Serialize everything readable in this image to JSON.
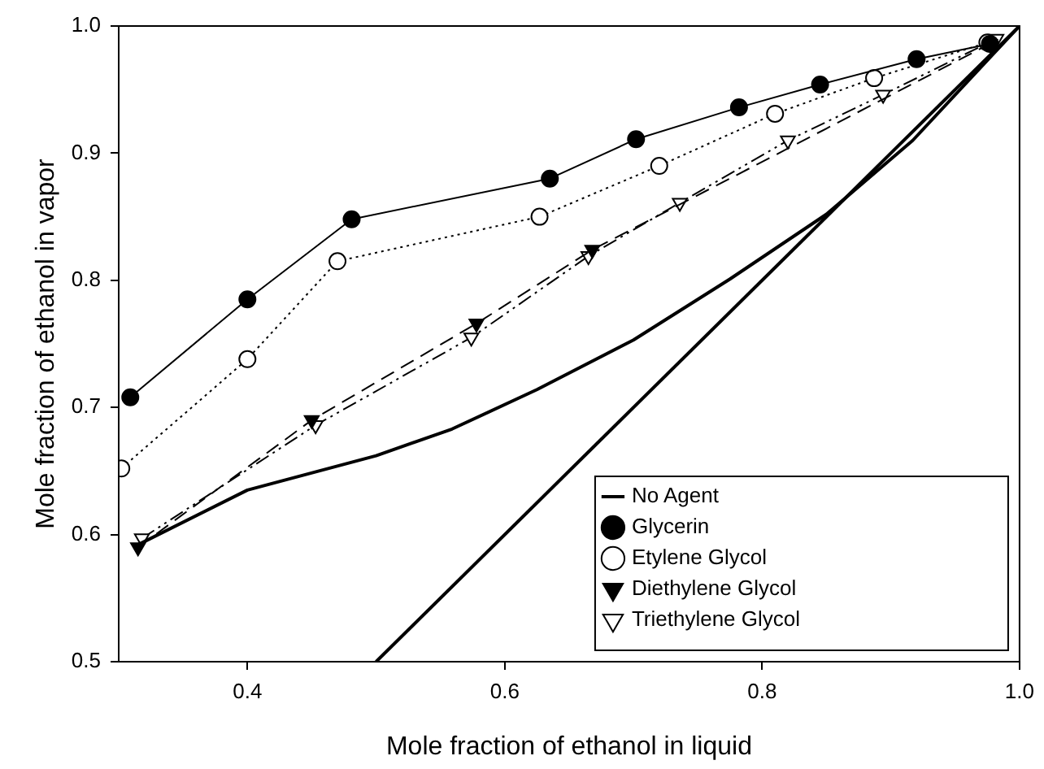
{
  "chart_data": {
    "type": "line",
    "xlabel": "Mole fraction of ethanol in liquid",
    "ylabel": "Mole fraction of ethanol in vapor",
    "xlim": [
      0.3,
      1.0
    ],
    "ylim": [
      0.5,
      1.0
    ],
    "xticks": [
      0.4,
      0.6,
      0.8,
      {
        "value": 1.0,
        "label": "1.0"
      }
    ],
    "yticks": [
      0.5,
      0.6,
      0.7,
      0.8,
      0.9,
      {
        "value": 1.0,
        "label": "1.0"
      }
    ],
    "grid": false,
    "legend": "bottom right",
    "series": [
      {
        "name": "No Agent",
        "color": "#000000",
        "marker": "none",
        "line_style": "solid",
        "x": [
          0.315,
          0.4,
          0.5,
          0.559,
          0.625,
          0.7,
          0.775,
          0.85,
          0.917,
          0.975,
          1.0
        ],
        "values": [
          0.592,
          0.635,
          0.662,
          0.683,
          0.714,
          0.753,
          0.801,
          0.852,
          0.91,
          0.973,
          1.0
        ]
      },
      {
        "name": "Glycerin",
        "color": "#000000",
        "marker": "circle",
        "line_style": "solid",
        "x": [
          0.309,
          0.4,
          0.481,
          0.635,
          0.702,
          0.782,
          0.845,
          0.92,
          0.977
        ],
        "values": [
          0.708,
          0.785,
          0.848,
          0.88,
          0.911,
          0.936,
          0.954,
          0.974,
          0.986
        ]
      },
      {
        "name": "Etylene Glycol",
        "color": "#000000",
        "marker": "circle-open",
        "line_style": "dotted",
        "x": [
          0.302,
          0.4,
          0.47,
          0.627,
          0.72,
          0.81,
          0.887,
          0.975
        ],
        "values": [
          0.652,
          0.738,
          0.815,
          0.85,
          0.89,
          0.931,
          0.959,
          0.987
        ]
      },
      {
        "name": "Diethylene Glycol",
        "color": "#000000",
        "marker": "triangle",
        "line_style": "dashed",
        "x": [
          0.315,
          0.45,
          0.578,
          0.668,
          0.977
        ],
        "values": [
          0.59,
          0.69,
          0.766,
          0.824,
          0.986
        ]
      },
      {
        "name": "Triethylene Glycol",
        "color": "#000000",
        "marker": "triangle-open",
        "line_style": "dashdotdot",
        "x": [
          0.318,
          0.453,
          0.574,
          0.665,
          0.736,
          0.82,
          0.894,
          0.982
        ],
        "values": [
          0.597,
          0.686,
          0.755,
          0.819,
          0.861,
          0.91,
          0.946,
          0.99
        ]
      },
      {
        "color": "#000000",
        "marker": "none",
        "line_style": "solid",
        "x": [
          0.5,
          1.0
        ],
        "values": [
          0.5,
          1.0
        ]
      }
    ]
  }
}
